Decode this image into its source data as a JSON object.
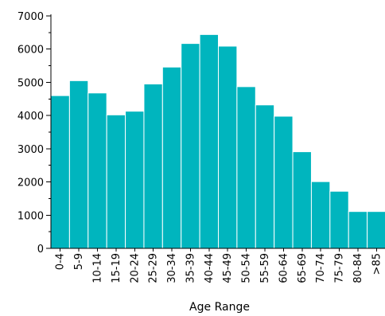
{
  "chart_data": {
    "type": "bar",
    "title": "",
    "xlabel": "Age Range",
    "ylabel": "",
    "ylim": [
      0,
      7000
    ],
    "yticks": [
      0,
      1000,
      2000,
      3000,
      4000,
      5000,
      6000,
      7000
    ],
    "categories": [
      "0-4",
      "5-9",
      "10-14",
      "15-19",
      "20-24",
      "25-29",
      "30-34",
      "35-39",
      "40-44",
      "45-49",
      "50-54",
      "55-59",
      "60-64",
      "65-69",
      "70-74",
      "75-79",
      "80-84",
      ">85"
    ],
    "values": [
      4600,
      5050,
      4680,
      4020,
      4130,
      4950,
      5460,
      6170,
      6440,
      6090,
      4870,
      4320,
      3980,
      2910,
      2010,
      1720,
      1110,
      1110
    ],
    "bar_color": "#00B5BE",
    "grid": false,
    "legend": "none"
  }
}
